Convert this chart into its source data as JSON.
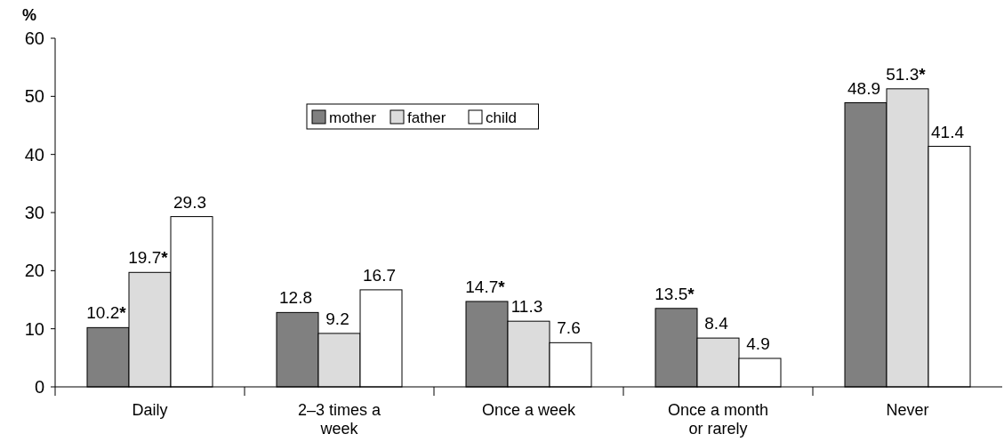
{
  "chart_data": {
    "type": "bar",
    "ylabel": "%",
    "categories": [
      "Daily",
      "2–3 times a week",
      "Once a week",
      "Once a month or rarely",
      "Never"
    ],
    "series": [
      {
        "name": "mother",
        "color": "#808080",
        "values": [
          10.2,
          12.8,
          14.7,
          13.5,
          48.9
        ],
        "value_labels": [
          "10.2*",
          "12.8",
          "14.7*",
          "13.5*",
          "48.9"
        ]
      },
      {
        "name": "father",
        "color": "#dcdcdc",
        "values": [
          19.7,
          9.2,
          11.3,
          8.4,
          51.3
        ],
        "value_labels": [
          "19.7*",
          "9.2",
          "11.3",
          "8.4",
          "51.3*"
        ]
      },
      {
        "name": "child",
        "color": "#ffffff",
        "values": [
          29.3,
          16.7,
          7.6,
          4.9,
          41.4
        ],
        "value_labels": [
          "29.3",
          "16.7",
          "7.6",
          "4.9",
          "41.4"
        ]
      }
    ],
    "ylim": [
      0,
      60
    ],
    "yticks": [
      0,
      10,
      20,
      30,
      40,
      50,
      60
    ],
    "legend": "top",
    "grid": false
  }
}
